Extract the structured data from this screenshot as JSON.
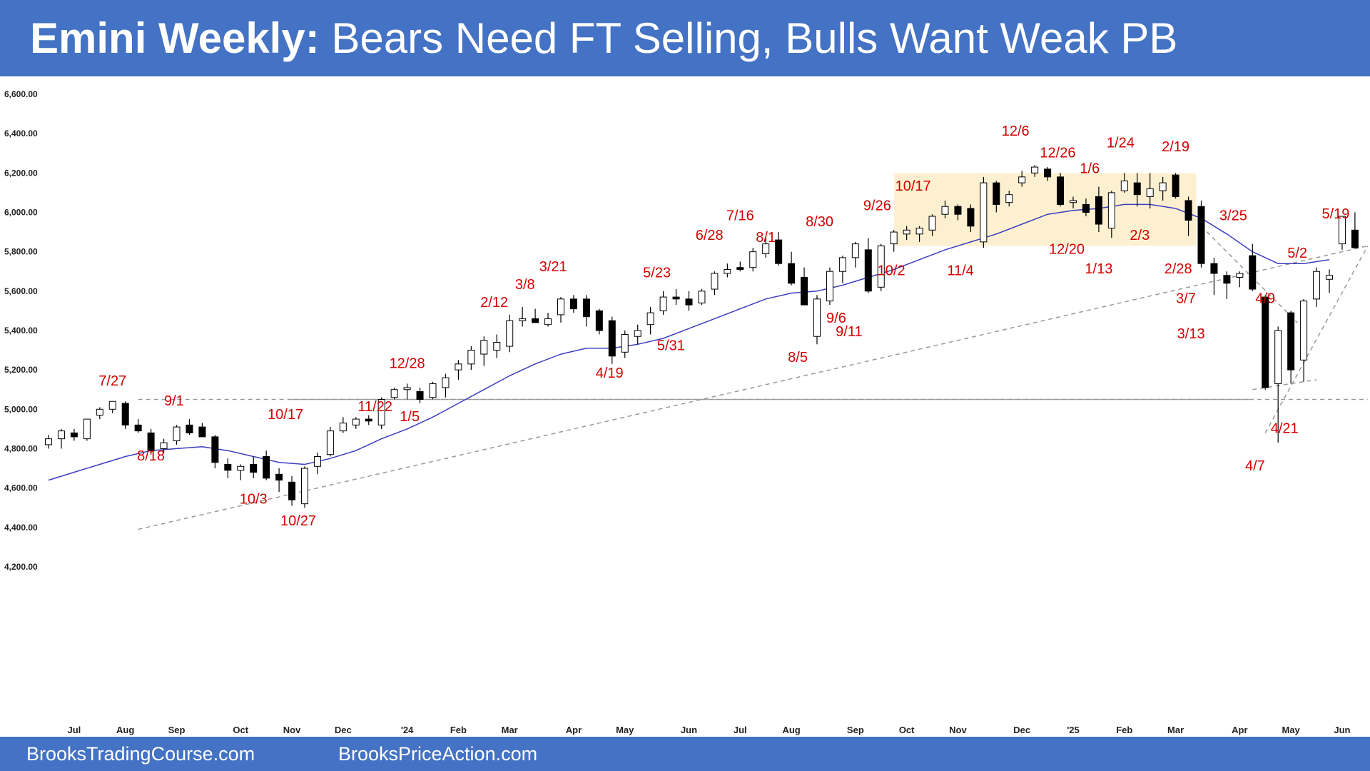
{
  "header": {
    "title_bold": "Emini Weekly:",
    "title_rest": "Bears Need FT Selling, Bulls Want Weak PB"
  },
  "footer": {
    "left": "BrooksTradingCourse.com",
    "right": "BrooksPriceAction.com"
  },
  "colors": {
    "header_bg": "#4472c4",
    "bull_body": "#ffffff",
    "bear_body": "#000000",
    "ema": "#3d3dbf",
    "label": "#d40000",
    "range_fill": "#fdf0d0",
    "trendline": "#999999"
  },
  "chart_data": {
    "type": "candlestick",
    "ylim": [
      4100,
      6650
    ],
    "y_ticks": [
      "6,600.00",
      "6,400.00",
      "6,200.00",
      "6,000.00",
      "5,800.00",
      "5,600.00",
      "5,400.00",
      "5,200.00",
      "5,000.00",
      "4,800.00",
      "4,600.00",
      "4,400.00",
      "4,200.00"
    ],
    "y_tick_values": [
      6600,
      6400,
      6200,
      6000,
      5800,
      5600,
      5400,
      5200,
      5000,
      4800,
      4600,
      4400,
      4200
    ],
    "x_ticks": [
      {
        "label": "Jul",
        "week": 2
      },
      {
        "label": "Aug",
        "week": 6
      },
      {
        "label": "Sep",
        "week": 10
      },
      {
        "label": "Oct",
        "week": 15
      },
      {
        "label": "Nov",
        "week": 19
      },
      {
        "label": "Dec",
        "week": 23
      },
      {
        "label": "'24",
        "week": 28
      },
      {
        "label": "Feb",
        "week": 32
      },
      {
        "label": "Mar",
        "week": 36
      },
      {
        "label": "Apr",
        "week": 41
      },
      {
        "label": "May",
        "week": 45
      },
      {
        "label": "Jun",
        "week": 50
      },
      {
        "label": "Jul",
        "week": 54
      },
      {
        "label": "Aug",
        "week": 58
      },
      {
        "label": "Sep",
        "week": 63
      },
      {
        "label": "Oct",
        "week": 67
      },
      {
        "label": "Nov",
        "week": 71
      },
      {
        "label": "Dec",
        "week": 76
      },
      {
        "label": "'25",
        "week": 80
      },
      {
        "label": "Feb",
        "week": 84
      },
      {
        "label": "Mar",
        "week": 88
      },
      {
        "label": "Apr",
        "week": 93
      },
      {
        "label": "May",
        "week": 97
      },
      {
        "label": "Jun",
        "week": 101
      }
    ],
    "candles": [
      [
        4820,
        4870,
        4800,
        4850
      ],
      [
        4850,
        4900,
        4800,
        4890
      ],
      [
        4880,
        4900,
        4840,
        4860
      ],
      [
        4850,
        4950,
        4840,
        4950
      ],
      [
        4970,
        5010,
        4950,
        5000
      ],
      [
        5000,
        5040,
        4980,
        5040
      ],
      [
        5030,
        5040,
        4900,
        4920
      ],
      [
        4920,
        4950,
        4880,
        4890
      ],
      [
        4880,
        4900,
        4770,
        4790
      ],
      [
        4800,
        4850,
        4780,
        4830
      ],
      [
        4840,
        4920,
        4820,
        4910
      ],
      [
        4920,
        4950,
        4870,
        4880
      ],
      [
        4910,
        4930,
        4860,
        4860
      ],
      [
        4860,
        4870,
        4700,
        4730
      ],
      [
        4720,
        4750,
        4650,
        4690
      ],
      [
        4690,
        4720,
        4640,
        4710
      ],
      [
        4720,
        4760,
        4650,
        4680
      ],
      [
        4760,
        4790,
        4640,
        4650
      ],
      [
        4670,
        4700,
        4580,
        4640
      ],
      [
        4630,
        4660,
        4510,
        4540
      ],
      [
        4520,
        4710,
        4500,
        4700
      ],
      [
        4710,
        4780,
        4670,
        4760
      ],
      [
        4770,
        4910,
        4760,
        4890
      ],
      [
        4890,
        4960,
        4880,
        4930
      ],
      [
        4920,
        4960,
        4900,
        4950
      ],
      [
        4950,
        4970,
        4920,
        4940
      ],
      [
        4920,
        5060,
        4900,
        5050
      ],
      [
        5060,
        5110,
        5050,
        5100
      ],
      [
        5100,
        5130,
        5050,
        5110
      ],
      [
        5090,
        5110,
        5030,
        5050
      ],
      [
        5060,
        5140,
        5050,
        5130
      ],
      [
        5110,
        5180,
        5060,
        5160
      ],
      [
        5200,
        5250,
        5150,
        5230
      ],
      [
        5230,
        5320,
        5200,
        5300
      ],
      [
        5280,
        5370,
        5220,
        5350
      ],
      [
        5300,
        5380,
        5260,
        5340
      ],
      [
        5320,
        5480,
        5290,
        5450
      ],
      [
        5450,
        5520,
        5420,
        5460
      ],
      [
        5460,
        5510,
        5440,
        5440
      ],
      [
        5430,
        5490,
        5420,
        5460
      ],
      [
        5480,
        5570,
        5440,
        5560
      ],
      [
        5560,
        5580,
        5490,
        5510
      ],
      [
        5560,
        5580,
        5420,
        5470
      ],
      [
        5500,
        5510,
        5380,
        5400
      ],
      [
        5450,
        5470,
        5230,
        5270
      ],
      [
        5290,
        5400,
        5260,
        5380
      ],
      [
        5370,
        5430,
        5330,
        5400
      ],
      [
        5430,
        5520,
        5380,
        5490
      ],
      [
        5500,
        5600,
        5480,
        5570
      ],
      [
        5570,
        5610,
        5530,
        5560
      ],
      [
        5560,
        5600,
        5500,
        5530
      ],
      [
        5540,
        5610,
        5530,
        5600
      ],
      [
        5610,
        5700,
        5580,
        5690
      ],
      [
        5690,
        5740,
        5670,
        5710
      ],
      [
        5720,
        5750,
        5700,
        5710
      ],
      [
        5720,
        5820,
        5700,
        5800
      ],
      [
        5790,
        5870,
        5770,
        5840
      ],
      [
        5860,
        5900,
        5730,
        5740
      ],
      [
        5740,
        5800,
        5630,
        5640
      ],
      [
        5670,
        5720,
        5540,
        5530
      ],
      [
        5370,
        5580,
        5330,
        5560
      ],
      [
        5550,
        5720,
        5530,
        5700
      ],
      [
        5700,
        5780,
        5640,
        5770
      ],
      [
        5770,
        5850,
        5720,
        5840
      ],
      [
        5810,
        5870,
        5590,
        5600
      ],
      [
        5620,
        5840,
        5600,
        5830
      ],
      [
        5840,
        5910,
        5800,
        5900
      ],
      [
        5890,
        5930,
        5860,
        5910
      ],
      [
        5890,
        5930,
        5850,
        5920
      ],
      [
        5910,
        5990,
        5880,
        5980
      ],
      [
        5990,
        6060,
        5970,
        6030
      ],
      [
        6030,
        6040,
        5960,
        5990
      ],
      [
        6020,
        6040,
        5900,
        5930
      ],
      [
        5850,
        6180,
        5820,
        6150
      ],
      [
        6150,
        6160,
        6000,
        6040
      ],
      [
        6050,
        6110,
        6030,
        6090
      ],
      [
        6150,
        6210,
        6130,
        6180
      ],
      [
        6200,
        6240,
        6180,
        6230
      ],
      [
        6220,
        6230,
        6160,
        6180
      ],
      [
        6180,
        6200,
        6030,
        6040
      ],
      [
        6050,
        6080,
        6020,
        6060
      ],
      [
        6040,
        6070,
        5980,
        6000
      ],
      [
        6080,
        6130,
        5900,
        5940
      ],
      [
        5920,
        6110,
        5870,
        6100
      ],
      [
        6110,
        6200,
        6100,
        6160
      ],
      [
        6150,
        6200,
        6030,
        6090
      ],
      [
        6080,
        6200,
        6020,
        6120
      ],
      [
        6110,
        6180,
        6060,
        6150
      ],
      [
        6190,
        6200,
        6070,
        6080
      ],
      [
        6060,
        6080,
        5880,
        5960
      ],
      [
        6030,
        6060,
        5720,
        5740
      ],
      [
        5740,
        5770,
        5580,
        5690
      ],
      [
        5680,
        5700,
        5560,
        5640
      ],
      [
        5670,
        5700,
        5620,
        5690
      ],
      [
        5780,
        5840,
        5600,
        5610
      ],
      [
        5570,
        5580,
        5100,
        5110
      ],
      [
        5130,
        5420,
        4830,
        5400
      ],
      [
        5490,
        5500,
        5130,
        5200
      ],
      [
        5250,
        5560,
        5140,
        5550
      ],
      [
        5560,
        5720,
        5520,
        5700
      ],
      [
        5660,
        5710,
        5590,
        5680
      ],
      [
        5840,
        5980,
        5810,
        5980
      ],
      [
        5910,
        6000,
        5820,
        5820
      ]
    ],
    "ema": [
      [
        0,
        4640
      ],
      [
        2,
        4680
      ],
      [
        4,
        4720
      ],
      [
        6,
        4760
      ],
      [
        8,
        4790
      ],
      [
        10,
        4800
      ],
      [
        12,
        4810
      ],
      [
        14,
        4790
      ],
      [
        16,
        4760
      ],
      [
        18,
        4730
      ],
      [
        20,
        4720
      ],
      [
        22,
        4750
      ],
      [
        24,
        4790
      ],
      [
        26,
        4850
      ],
      [
        28,
        4900
      ],
      [
        30,
        4960
      ],
      [
        32,
        5030
      ],
      [
        34,
        5100
      ],
      [
        36,
        5170
      ],
      [
        38,
        5230
      ],
      [
        40,
        5280
      ],
      [
        42,
        5310
      ],
      [
        44,
        5310
      ],
      [
        46,
        5330
      ],
      [
        48,
        5360
      ],
      [
        50,
        5410
      ],
      [
        52,
        5460
      ],
      [
        54,
        5510
      ],
      [
        56,
        5560
      ],
      [
        58,
        5590
      ],
      [
        60,
        5600
      ],
      [
        62,
        5630
      ],
      [
        64,
        5670
      ],
      [
        66,
        5710
      ],
      [
        68,
        5760
      ],
      [
        70,
        5810
      ],
      [
        72,
        5850
      ],
      [
        74,
        5890
      ],
      [
        76,
        5940
      ],
      [
        78,
        5990
      ],
      [
        80,
        6010
      ],
      [
        82,
        6020
      ],
      [
        84,
        6040
      ],
      [
        86,
        6040
      ],
      [
        88,
        6020
      ],
      [
        90,
        5970
      ],
      [
        92,
        5890
      ],
      [
        94,
        5800
      ],
      [
        96,
        5740
      ],
      [
        98,
        5740
      ],
      [
        100,
        5760
      ]
    ],
    "range_box": {
      "w0": 66,
      "w1": 89.6,
      "low": 5830,
      "high": 6200
    },
    "lines": [
      {
        "w0": 7,
        "p0": 4390,
        "w1": 103,
        "p1": 5830
      },
      {
        "w0": 7,
        "p0": 5050,
        "w1": 94,
        "p1": 5050
      },
      {
        "w0": 19,
        "p0": 5050,
        "w1": 103,
        "p1": 5050
      },
      {
        "w0": 90,
        "p0": 5930,
        "w1": 97.5,
        "p1": 5440
      },
      {
        "w0": 94,
        "p0": 5100,
        "w1": 99,
        "p1": 5150
      },
      {
        "w0": 95,
        "p0": 4880,
        "w1": 103,
        "p1": 5830
      }
    ],
    "annotations": [
      {
        "text": "7/27",
        "week": 5,
        "price": 5120
      },
      {
        "text": "9/1",
        "week": 9.8,
        "price": 5020
      },
      {
        "text": "8/18",
        "week": 8,
        "price": 4740
      },
      {
        "text": "10/17",
        "week": 18.5,
        "price": 4950
      },
      {
        "text": "10/3",
        "week": 16,
        "price": 4520
      },
      {
        "text": "10/27",
        "week": 19.5,
        "price": 4410
      },
      {
        "text": "11/22",
        "week": 25.5,
        "price": 4990
      },
      {
        "text": "1/5",
        "week": 28.2,
        "price": 4940
      },
      {
        "text": "12/28",
        "week": 28,
        "price": 5210
      },
      {
        "text": "2/12",
        "week": 34.8,
        "price": 5520
      },
      {
        "text": "3/8",
        "week": 37.2,
        "price": 5610
      },
      {
        "text": "3/21",
        "week": 39.4,
        "price": 5700
      },
      {
        "text": "4/19",
        "week": 43.8,
        "price": 5160
      },
      {
        "text": "5/23",
        "week": 47.5,
        "price": 5670
      },
      {
        "text": "5/31",
        "week": 48.6,
        "price": 5300
      },
      {
        "text": "6/28",
        "week": 51.6,
        "price": 5860
      },
      {
        "text": "7/16",
        "week": 54,
        "price": 5960
      },
      {
        "text": "8/1",
        "week": 56,
        "price": 5850
      },
      {
        "text": "8/30",
        "week": 60.2,
        "price": 5930
      },
      {
        "text": "8/5",
        "week": 58.5,
        "price": 5240
      },
      {
        "text": "9/6",
        "week": 61.5,
        "price": 5440
      },
      {
        "text": "9/11",
        "week": 62.5,
        "price": 5370
      },
      {
        "text": "9/26",
        "week": 64.7,
        "price": 6010
      },
      {
        "text": "10/17",
        "week": 67.5,
        "price": 6110
      },
      {
        "text": "10/2",
        "week": 65.8,
        "price": 5680
      },
      {
        "text": "11/4",
        "week": 71.2,
        "price": 5680
      },
      {
        "text": "12/6",
        "week": 75.5,
        "price": 6390
      },
      {
        "text": "12/26",
        "week": 78.8,
        "price": 6280
      },
      {
        "text": "1/6",
        "week": 81.3,
        "price": 6200
      },
      {
        "text": "1/24",
        "week": 83.7,
        "price": 6330
      },
      {
        "text": "2/19",
        "week": 88,
        "price": 6310
      },
      {
        "text": "12/20",
        "week": 79.5,
        "price": 5790
      },
      {
        "text": "1/13",
        "week": 82,
        "price": 5690
      },
      {
        "text": "2/3",
        "week": 85.2,
        "price": 5860
      },
      {
        "text": "2/28",
        "week": 88.2,
        "price": 5690
      },
      {
        "text": "3/25",
        "week": 92.5,
        "price": 5960
      },
      {
        "text": "3/7",
        "week": 88.8,
        "price": 5540
      },
      {
        "text": "3/13",
        "week": 89.2,
        "price": 5360
      },
      {
        "text": "4/9",
        "week": 95,
        "price": 5540
      },
      {
        "text": "5/2",
        "week": 97.5,
        "price": 5770
      },
      {
        "text": "5/19",
        "week": 100.5,
        "price": 5970
      },
      {
        "text": "4/21",
        "week": 96.5,
        "price": 4880
      },
      {
        "text": "4/7",
        "week": 94.2,
        "price": 4690
      }
    ]
  }
}
